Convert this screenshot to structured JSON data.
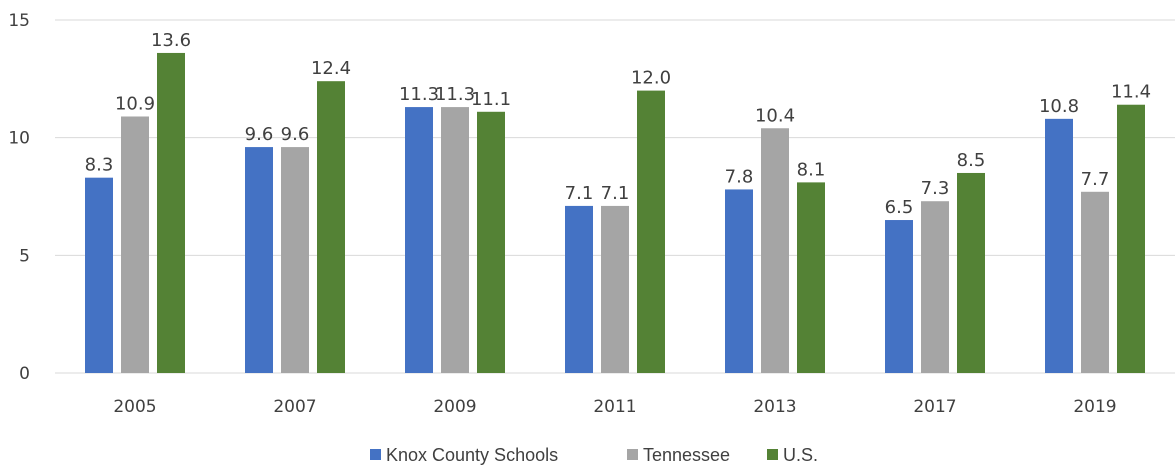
{
  "chart_data": {
    "type": "bar",
    "categories": [
      "2005",
      "2007",
      "2009",
      "2011",
      "2013",
      "2017",
      "2019"
    ],
    "series": [
      {
        "name": "Knox County Schools",
        "color": "#4472c4",
        "values": [
          8.3,
          9.6,
          11.3,
          7.1,
          7.8,
          6.5,
          10.8
        ],
        "labels": [
          "8.3",
          "9.6",
          "11.3",
          "7.1",
          "7.8",
          "6.5",
          "10.8"
        ]
      },
      {
        "name": "Tennessee",
        "color": "#a5a5a5",
        "values": [
          10.9,
          9.6,
          11.3,
          7.1,
          10.4,
          7.3,
          7.7
        ],
        "labels": [
          "10.9",
          "9.6",
          "11.3",
          "7.1",
          "10.4",
          "7.3",
          "7.7"
        ]
      },
      {
        "name": "U.S.",
        "color": "#548235",
        "values": [
          13.6,
          12.4,
          11.1,
          12.0,
          8.1,
          8.5,
          11.4
        ],
        "labels": [
          "13.6",
          "12.4",
          "11.1",
          "12.0",
          "8.1",
          "8.5",
          "11.4"
        ]
      }
    ],
    "y_ticks": [
      "0",
      "5",
      "10",
      "15"
    ],
    "ylim": [
      0,
      15
    ],
    "grid": true,
    "gridline_color": "#d9d9d9",
    "legend_position": "bottom",
    "title": "",
    "xlabel": "",
    "ylabel": ""
  }
}
